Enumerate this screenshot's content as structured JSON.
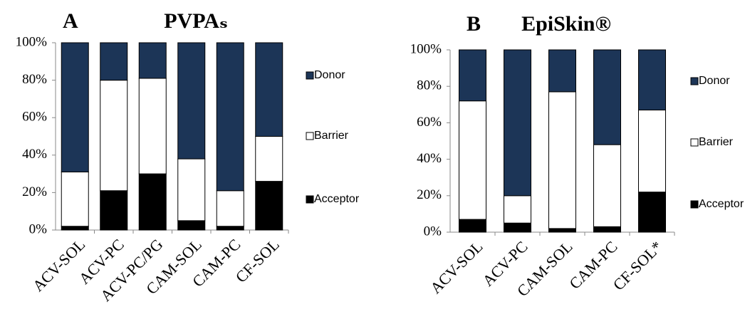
{
  "chart_data": [
    {
      "type": "bar",
      "stacked": true,
      "panel": "A",
      "title": "PVPAₛ",
      "categories": [
        "ACV-SOL",
        "ACV-PC",
        "ACV-PC/PG",
        "CAM-SOL",
        "CAM-PC",
        "CF-SOL"
      ],
      "series": [
        {
          "name": "Acceptor",
          "color": "#000000",
          "values": [
            2,
            21,
            30,
            5,
            2,
            26
          ]
        },
        {
          "name": "Barrier",
          "color": "#ffffff",
          "values": [
            29,
            59,
            51,
            33,
            19,
            24
          ]
        },
        {
          "name": "Donor",
          "color": "#1c3557",
          "values": [
            69,
            20,
            19,
            62,
            79,
            50
          ]
        }
      ],
      "ylim": [
        0,
        100
      ],
      "yticks": [
        {
          "value": 0,
          "label": "0%"
        },
        {
          "value": 20,
          "label": "20%"
        },
        {
          "value": 40,
          "label": "40%"
        },
        {
          "value": 60,
          "label": "60%"
        },
        {
          "value": 80,
          "label": "80%"
        },
        {
          "value": 100,
          "label": "100%"
        }
      ],
      "legend": "right"
    },
    {
      "type": "bar",
      "stacked": true,
      "panel": "B",
      "title": "EpiSkin®",
      "categories": [
        "ACV-SOL",
        "ACV-PC",
        "CAM-SOL",
        "CAM-PC",
        "CF-SOL*"
      ],
      "series": [
        {
          "name": "Acceptor",
          "color": "#000000",
          "values": [
            7,
            5,
            2,
            3,
            22
          ]
        },
        {
          "name": "Barrier",
          "color": "#ffffff",
          "values": [
            65,
            15,
            75,
            45,
            45
          ]
        },
        {
          "name": "Donor",
          "color": "#1c3557",
          "values": [
            28,
            80,
            23,
            52,
            33
          ]
        }
      ],
      "ylim": [
        0,
        100
      ],
      "yticks": [
        {
          "value": 0,
          "label": "0%"
        },
        {
          "value": 20,
          "label": "20%"
        },
        {
          "value": 40,
          "label": "40%"
        },
        {
          "value": 60,
          "label": "60%"
        },
        {
          "value": 80,
          "label": "80%"
        },
        {
          "value": 100,
          "label": "100%"
        }
      ],
      "legend": "right"
    }
  ]
}
